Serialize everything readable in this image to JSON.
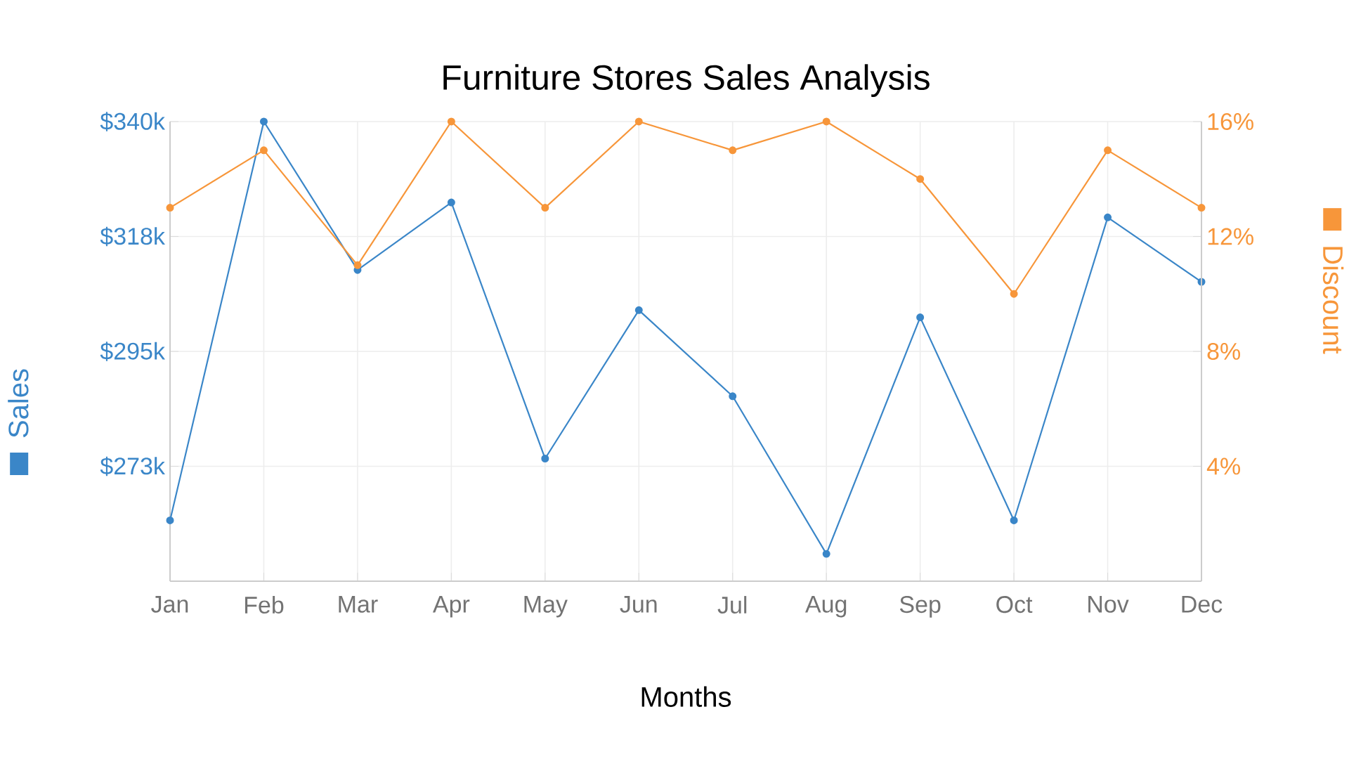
{
  "chart_data": {
    "type": "line",
    "title": "Furniture Stores Sales Analysis",
    "xlabel": "Months",
    "ylabel": "Sales",
    "y2label": "Discount",
    "categories": [
      "Jan",
      "Feb",
      "Mar",
      "Apr",
      "May",
      "Jun",
      "Jul",
      "Aug",
      "Sep",
      "Oct",
      "Nov",
      "Dec"
    ],
    "series": [
      {
        "color": "#3a86c8",
        "values": [
          262.6,
          340,
          311.2,
          324.3,
          274.6,
          303.4,
          286.7,
          256.1,
          302,
          262.6,
          321.4,
          308.9
        ]
      },
      {
        "color": "#f7963a",
        "axis": "y2",
        "values": [
          13,
          15,
          11,
          16,
          13,
          16,
          15,
          16,
          14,
          10,
          15,
          13
        ]
      }
    ],
    "ylim": [
      250.8,
      340
    ],
    "yticks": [
      {
        "value": 273.1,
        "label": "$273k"
      },
      {
        "value": 295.4,
        "label": "$295k"
      },
      {
        "value": 317.7,
        "label": "$318k"
      },
      {
        "value": 340,
        "label": "$340k"
      }
    ],
    "y2lim": [
      0,
      16
    ],
    "y2ticks": [
      {
        "value": 4,
        "label": "4%"
      },
      {
        "value": 8,
        "label": "8%"
      },
      {
        "value": 12,
        "label": "12%"
      },
      {
        "value": 16,
        "label": "16%"
      }
    ],
    "grid": true,
    "marker": "circle",
    "line_style": "solid"
  }
}
